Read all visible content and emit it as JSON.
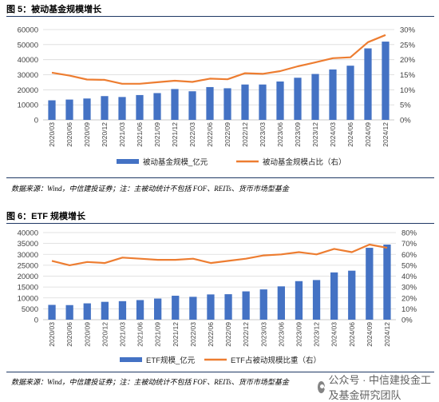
{
  "figures": [
    {
      "title": "图 5：被动基金规模增长",
      "source": "数据来源：Wind，中信建投证券；注：主被动统计不包括 FOF、REITs、货币市场型基金"
    },
    {
      "title": "图 6：ETF 规模增长",
      "source": "数据来源：Wind，中信建投证券；注：主被动统计不包括 FOF、REITs、货币市场型基金"
    }
  ],
  "watermark": "公众号 · 中信建投金工及基金研究团队",
  "colors": {
    "bar": "#4472c4",
    "line": "#ed7d31",
    "grid": "#d9d9d9",
    "rule": "#1f3864"
  },
  "chart_data": [
    {
      "type": "bar",
      "categories": [
        "2020/03",
        "2020/06",
        "2020/09",
        "2020/12",
        "2021/03",
        "2021/06",
        "2021/09",
        "2021/12",
        "2022/03",
        "2022/06",
        "2022/09",
        "2022/12",
        "2023/03",
        "2023/06",
        "2023/09",
        "2023/12",
        "2024/03",
        "2024/06",
        "2024/09",
        "2024/12"
      ],
      "ylim": [
        0,
        60000
      ],
      "yticks": [
        "0",
        "10000",
        "20000",
        "30000",
        "40000",
        "50000",
        "60000"
      ],
      "y2lim": [
        0,
        30
      ],
      "y2ticks": [
        "0%",
        "5%",
        "10%",
        "15%",
        "20%",
        "25%",
        "30%"
      ],
      "grid": true,
      "legend_position": "bottom",
      "series": [
        {
          "name": "被动基金规模_亿元",
          "kind": "bar",
          "axis": "left",
          "values": [
            13000,
            13500,
            14200,
            15800,
            15200,
            16500,
            17800,
            20500,
            19000,
            21800,
            21000,
            23500,
            23500,
            25500,
            28000,
            30500,
            33500,
            36000,
            47500,
            52000
          ]
        },
        {
          "name": "被动基金规模占比（右）",
          "kind": "line",
          "axis": "right",
          "values": [
            15.7,
            14.7,
            13.4,
            13.3,
            12.0,
            12.0,
            12.5,
            13.0,
            12.6,
            13.7,
            13.5,
            15.5,
            15.3,
            16.2,
            17.8,
            19.1,
            20.5,
            20.8,
            25.8,
            28.2
          ]
        }
      ]
    },
    {
      "type": "bar",
      "categories": [
        "2020/03",
        "2020/06",
        "2020/09",
        "2020/12",
        "2021/03",
        "2021/06",
        "2021/09",
        "2021/12",
        "2022/03",
        "2022/06",
        "2022/09",
        "2022/12",
        "2023/03",
        "2023/06",
        "2023/09",
        "2023/12",
        "2024/03",
        "2024/06",
        "2024/09",
        "2024/12"
      ],
      "ylim": [
        0,
        40000
      ],
      "yticks": [
        "0",
        "5000",
        "10000",
        "15000",
        "20000",
        "25000",
        "30000",
        "35000",
        "40000"
      ],
      "y2lim": [
        0,
        80
      ],
      "y2ticks": [
        "0%",
        "10%",
        "20%",
        "30%",
        "40%",
        "50%",
        "60%",
        "70%",
        "80%"
      ],
      "grid": true,
      "legend_position": "bottom",
      "series": [
        {
          "name": "ETF规模_亿元",
          "kind": "bar",
          "axis": "left",
          "values": [
            6800,
            6700,
            7500,
            8200,
            8500,
            9000,
            9700,
            11000,
            10500,
            11600,
            11700,
            13000,
            13900,
            15300,
            17700,
            18200,
            21700,
            22500,
            33000,
            34500
          ]
        },
        {
          "name": "ETF占被动规模比重（右）",
          "kind": "line",
          "axis": "right",
          "values": [
            54,
            50,
            53,
            52,
            57,
            56,
            55,
            55,
            56,
            52,
            54,
            56,
            59,
            60,
            62,
            60,
            65,
            62,
            69,
            66
          ]
        }
      ]
    }
  ]
}
